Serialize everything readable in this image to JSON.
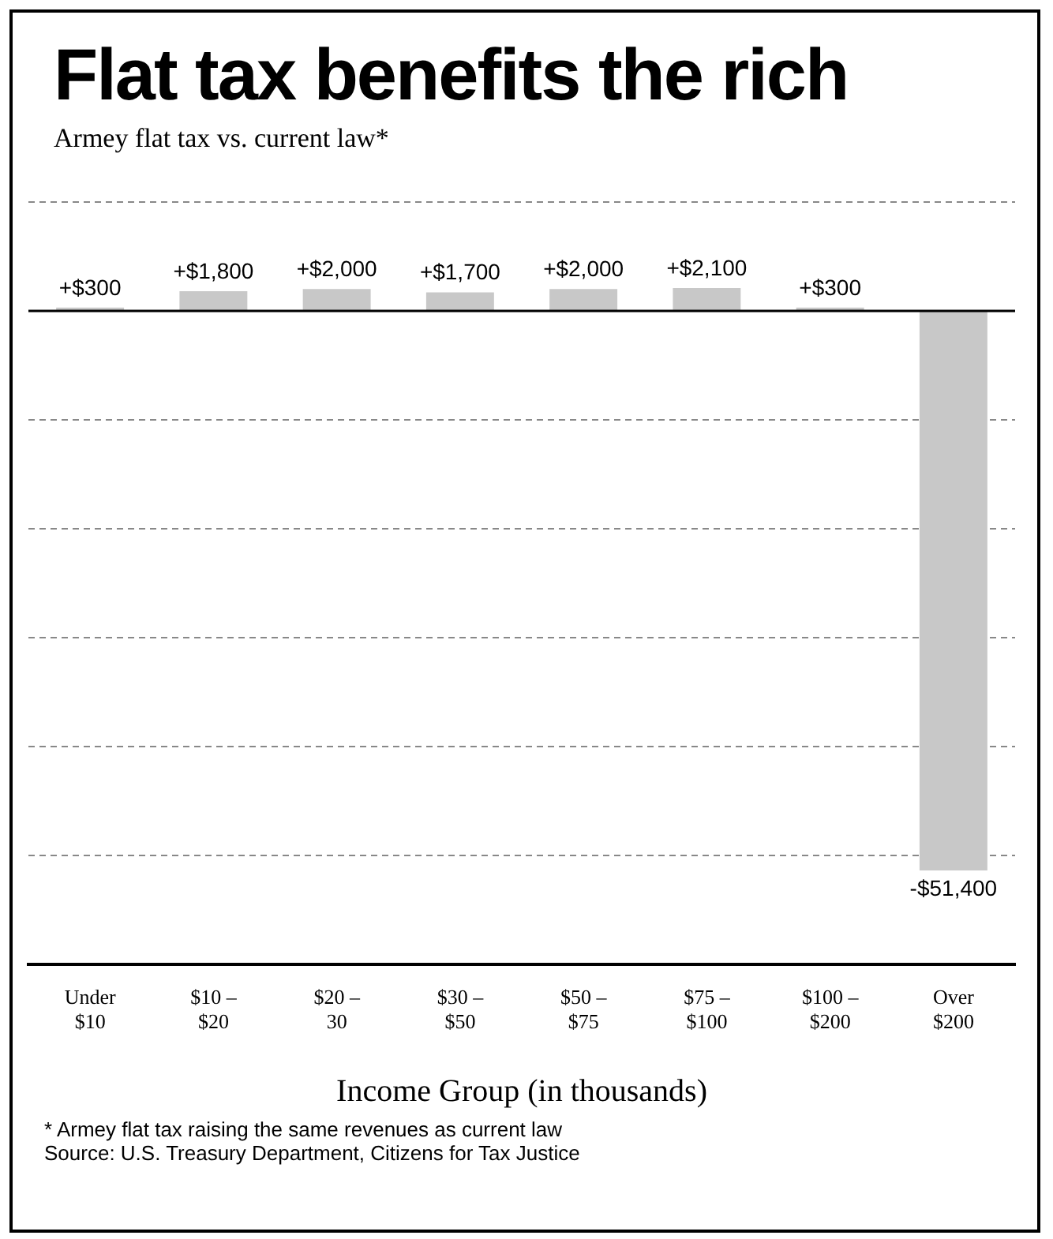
{
  "chart_data": {
    "type": "bar",
    "title": "Flat tax benefits the rich",
    "subtitle": "Armey flat tax vs. current law*",
    "xlabel": "Income Group (in thousands)",
    "categories": [
      "Under $10",
      "$10 – $20",
      "$20 – 30",
      "$30 – $50",
      "$50 – $75",
      "$75 – $100",
      "$100 – $200",
      "Over $200"
    ],
    "values": [
      300,
      1800,
      2000,
      1700,
      2000,
      2100,
      300,
      -51400
    ],
    "value_labels": [
      "+$300",
      "+$1,800",
      "+$2,000",
      "+$1,700",
      "+$2,000",
      "+$2,100",
      "+$300",
      "-$51,400"
    ],
    "color": "#c8c8c8",
    "grid": "y",
    "line_style": "dashed",
    "legend": false,
    "tick_labels": "x",
    "ref_lines": [
      {
        "axis": "y",
        "value": 0,
        "label": null,
        "color": "#000000"
      }
    ],
    "annotations": [
      "* Armey flat tax raising the same revenues as current law",
      "Source: U.S. Treasury Department, Citizens for Tax Justice"
    ]
  }
}
